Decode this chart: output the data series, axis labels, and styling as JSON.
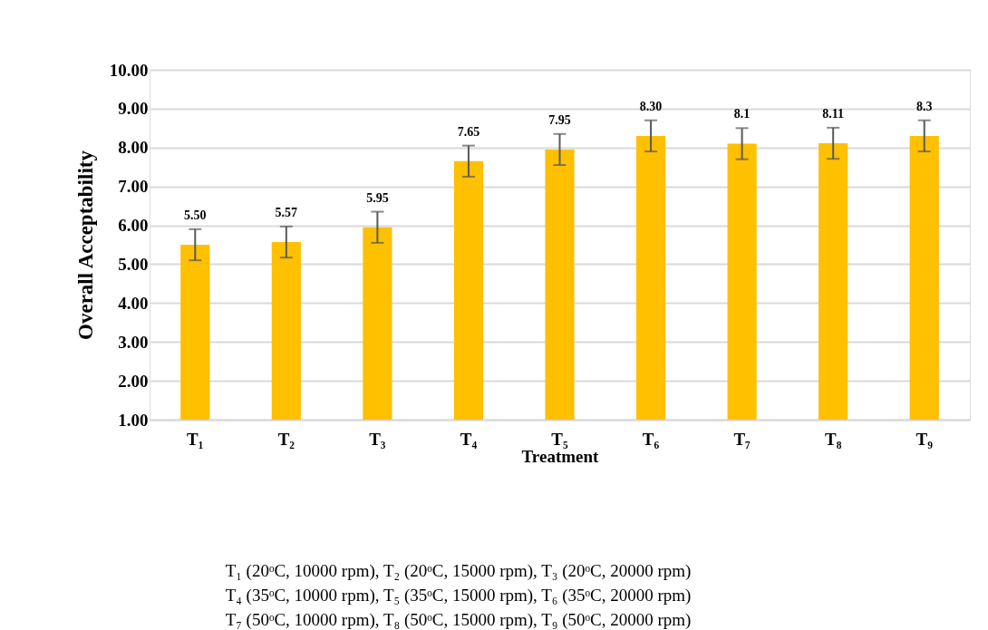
{
  "chart_data": {
    "type": "bar",
    "xlabel": "Treatment",
    "ylabel": "Overall Acceptability",
    "categories": [
      "T₁",
      "T₂",
      "T₃",
      "T₄",
      "T₅",
      "T₆",
      "T₇",
      "T₈",
      "T₉"
    ],
    "values": [
      5.5,
      5.57,
      5.95,
      7.65,
      7.95,
      8.3,
      8.1,
      8.11,
      8.3
    ],
    "errors": [
      0.4,
      0.4,
      0.4,
      0.4,
      0.4,
      0.4,
      0.4,
      0.4,
      0.4
    ],
    "value_labels": [
      "5.50",
      "5.57",
      "5.95",
      "7.65",
      "7.95",
      "8.30",
      "8.1",
      "8.11",
      "8.3"
    ],
    "color": "#ffc000",
    "ylim": [
      1,
      10
    ],
    "yticks": [
      {
        "value": 1,
        "label": "1.00"
      },
      {
        "value": 2,
        "label": "2.00"
      },
      {
        "value": 3,
        "label": "3.00"
      },
      {
        "value": 4,
        "label": "4.00"
      },
      {
        "value": 5,
        "label": "5.00"
      },
      {
        "value": 6,
        "label": "6.00"
      },
      {
        "value": 7,
        "label": "7.00"
      },
      {
        "value": 8,
        "label": "8.00"
      },
      {
        "value": 9,
        "label": "9.00"
      },
      {
        "value": 10,
        "label": "10.00"
      }
    ],
    "grid": "y",
    "annotations": [
      "T₁ (20ᵒC, 10000 rpm), T₂ (20ᵒC, 15000 rpm), T₃ (20ᵒC, 20000 rpm)",
      "T₄ (35ᵒC, 10000 rpm), T₅ (35ᵒC, 15000 rpm), T₆ (35ᵒC, 20000 rpm)",
      "T₇ (50ᵒC, 10000 rpm), T₈ (50ᵒC, 15000 rpm), T₉ (50ᵒC, 20000 rpm)"
    ]
  }
}
